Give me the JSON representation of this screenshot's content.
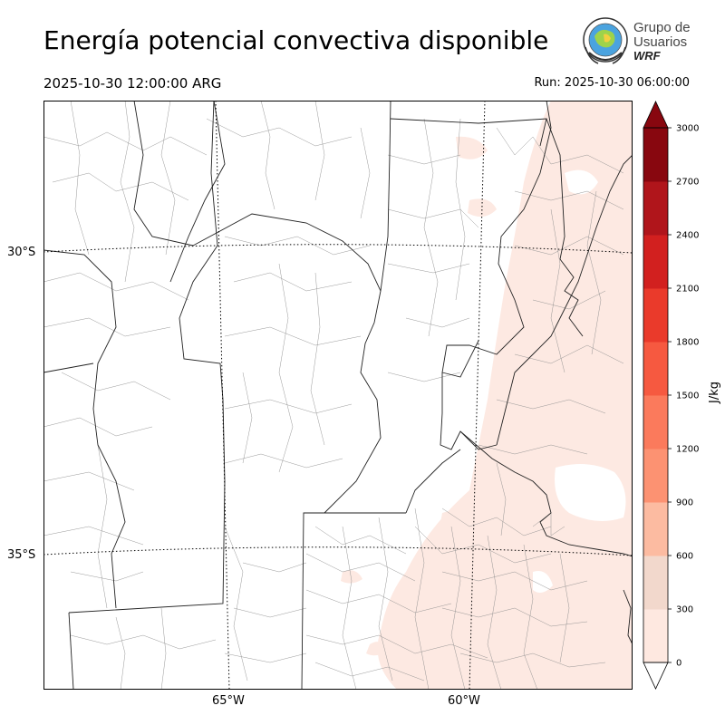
{
  "header": {
    "title": "Energía potencial convectiva disponible",
    "valid_time": "2025-10-30 12:00:00 ARG",
    "run_time": "Run: 2025-10-30 06:00:00"
  },
  "logo": {
    "line1": "Grupo de",
    "line2": "Usuarios",
    "line3": "WRF"
  },
  "map": {
    "lat_labels": [
      "30°S",
      "35°S"
    ],
    "lon_labels": [
      "65°W",
      "60°W"
    ]
  },
  "colorbar": {
    "unit": "J/kg",
    "ticks": [
      "0",
      "300",
      "600",
      "900",
      "1200",
      "1500",
      "1800",
      "2100",
      "2400",
      "2700",
      "3000"
    ],
    "colors": [
      "#fee8e0",
      "#f2d8cc",
      "#fcbba1",
      "#fc9272",
      "#fb7a5c",
      "#f65940",
      "#ea3a2b",
      "#d2201f",
      "#b0151b",
      "#88070f"
    ]
  }
}
